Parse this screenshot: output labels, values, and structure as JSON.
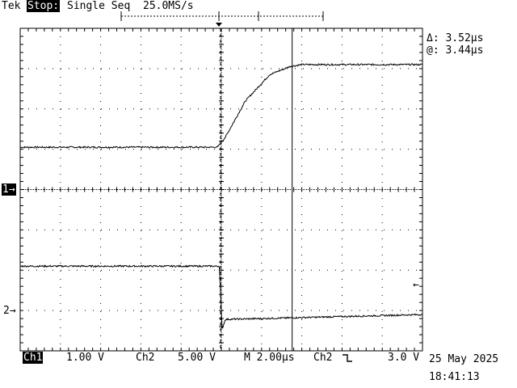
{
  "header": {
    "brand": "Tek",
    "run_state": "Stop:",
    "acq_mode": "Single Seq",
    "sample_rate": "25.0MS/s"
  },
  "cursor_readout": {
    "delta": "Δ: 3.52µs",
    "at": "@: 3.44µs"
  },
  "markers": {
    "ch1": "1→",
    "ch2": "2→",
    "trigger_level": "←"
  },
  "footer": {
    "ch1_label": "Ch1",
    "ch1_scale": "1.00 V",
    "ch2_label": "Ch2",
    "ch2_scale": "5.00 V",
    "timebase": "M 2.00µs",
    "trig_source": "Ch2",
    "trig_slope_icon": "falling-edge-icon",
    "trig_level": "3.0 V",
    "date": "25 May 2025",
    "time": "18:41:13"
  },
  "chart_data": {
    "type": "line",
    "x_divisions": 10,
    "y_divisions": 8,
    "x_unit_per_div": "2.00µs",
    "trigger_div": 5,
    "cursor_div": 6.76,
    "series": [
      {
        "name": "Ch1",
        "x": [
          0,
          4.9,
          5.1,
          5.6,
          6.2,
          6.7,
          7.0,
          10
        ],
        "y": [
          5.05,
          5.05,
          5.3,
          6.2,
          6.85,
          7.05,
          7.1,
          7.1
        ]
      },
      {
        "name": "Ch2",
        "x": [
          0,
          4.95,
          5.02,
          5.1,
          6.0,
          8.0,
          10
        ],
        "y": [
          2.1,
          2.1,
          0.55,
          0.78,
          0.8,
          0.85,
          0.9
        ]
      }
    ]
  }
}
